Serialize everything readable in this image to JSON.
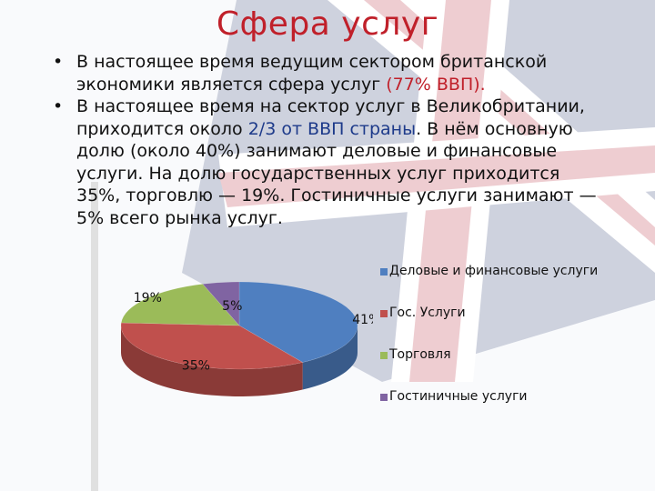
{
  "slide": {
    "title": "Сфера услуг",
    "bullet1": {
      "text": "В настоящее время ведущим сектором британской экономики является сфера услуг ",
      "highlight": "(77% ВВП)."
    },
    "bullet2": {
      "text_before": "В настоящее время на сектор услуг в Великобритании, приходится около ",
      "highlight": "2/3 от ВВП страны",
      "text_after": ". В нём основную долю (около 40%) занимают деловые и финансовые услуги. На долю государственных услуг приходится 35%, торговлю — 19%. Гостиничные услуги занимают — 5% всего рынка услуг."
    },
    "bullet_glyph": "•"
  },
  "chart_data": {
    "type": "pie",
    "style": "3d",
    "legend_position": "right",
    "series": [
      {
        "name": "Деловые и финансовые услуги",
        "value": 41,
        "label": "41%",
        "color": "#4f7fc0"
      },
      {
        "name": "Гос. Услуги",
        "value": 35,
        "label": "35%",
        "color": "#c0504d"
      },
      {
        "name": "Торговля",
        "value": 19,
        "label": "19%",
        "color": "#9bbb59"
      },
      {
        "name": "Гостиничные услуги",
        "value": 5,
        "label": "5%",
        "color": "#8064a2"
      }
    ]
  }
}
